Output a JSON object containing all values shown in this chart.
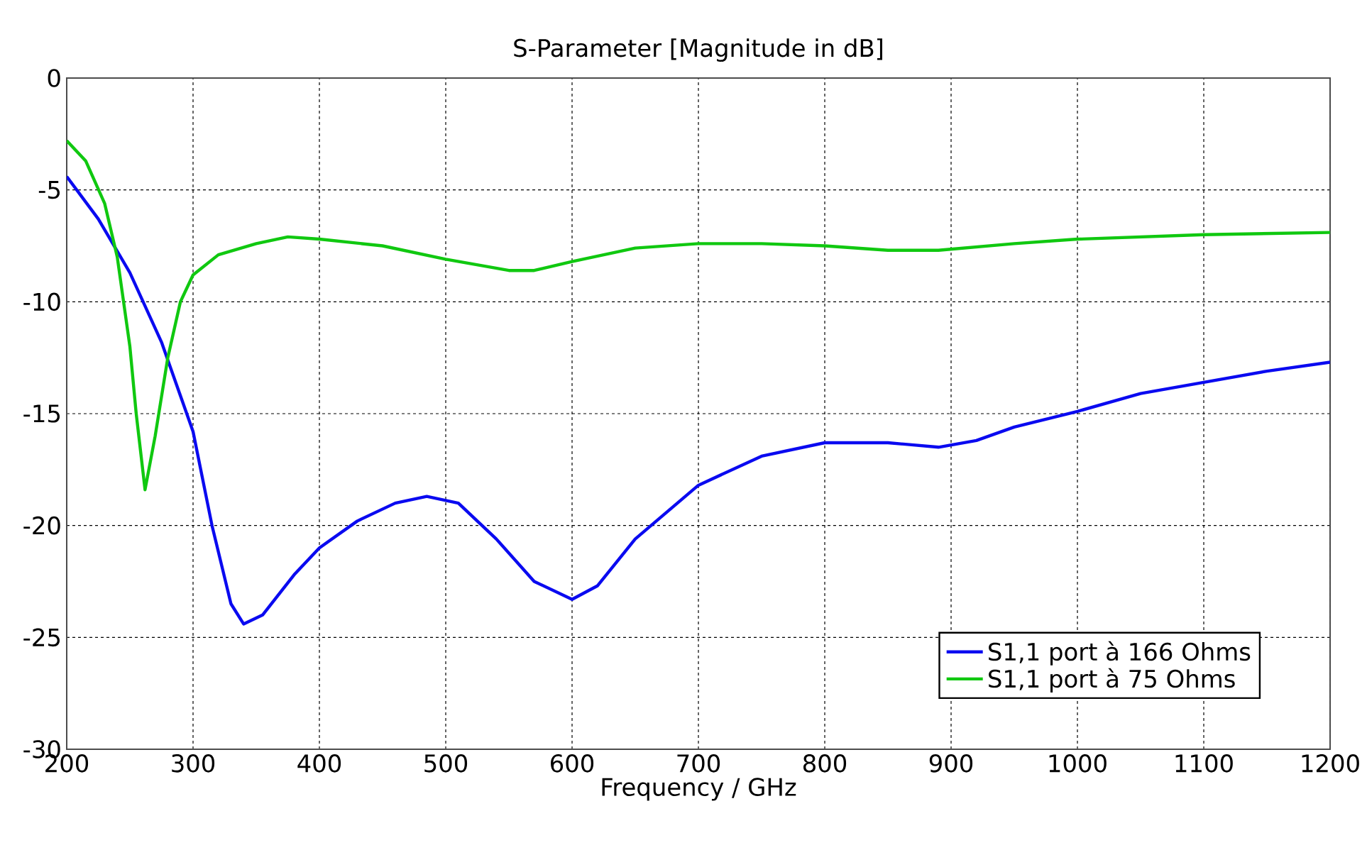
{
  "chart_data": {
    "type": "line",
    "title": "S-Parameter [Magnitude in dB]",
    "xlabel": "Frequency / GHz",
    "xlim": [
      200,
      1200
    ],
    "ylim": [
      -30,
      0
    ],
    "xticks": [
      200,
      300,
      400,
      500,
      600,
      700,
      800,
      900,
      1000,
      1100,
      1200
    ],
    "yticks": [
      -30,
      -25,
      -20,
      -15,
      -10,
      -5,
      0
    ],
    "grid": true,
    "legend": "bottom right",
    "line_style": "solid",
    "marker": "none",
    "series": [
      {
        "name": "S1,1 port à 166 Ohms",
        "color": "#0a0af0",
        "x": [
          200,
          225,
          250,
          275,
          300,
          315,
          330,
          340,
          355,
          380,
          400,
          430,
          460,
          485,
          510,
          540,
          570,
          600,
          620,
          650,
          700,
          750,
          800,
          850,
          890,
          920,
          950,
          1000,
          1050,
          1100,
          1150,
          1200
        ],
        "values": [
          -4.4,
          -6.3,
          -8.7,
          -11.8,
          -15.8,
          -20.0,
          -23.5,
          -24.4,
          -24.0,
          -22.2,
          -21.0,
          -19.8,
          -19.0,
          -18.7,
          -19.0,
          -20.6,
          -22.5,
          -23.3,
          -22.7,
          -20.6,
          -18.2,
          -16.9,
          -16.3,
          -16.3,
          -16.5,
          -16.2,
          -15.6,
          -14.9,
          -14.1,
          -13.6,
          -13.1,
          -12.7
        ]
      },
      {
        "name": "S1,1 port à 75 Ohms",
        "color": "#10c810",
        "x": [
          200,
          215,
          230,
          240,
          250,
          255,
          262,
          270,
          280,
          290,
          300,
          320,
          350,
          375,
          400,
          450,
          500,
          550,
          570,
          600,
          650,
          700,
          750,
          800,
          850,
          890,
          950,
          1000,
          1100,
          1200
        ],
        "values": [
          -2.8,
          -3.7,
          -5.6,
          -8.0,
          -12.0,
          -15.0,
          -18.4,
          -16.0,
          -12.5,
          -10.0,
          -8.8,
          -7.9,
          -7.4,
          -7.1,
          -7.2,
          -7.5,
          -8.1,
          -8.6,
          -8.6,
          -8.2,
          -7.6,
          -7.4,
          -7.4,
          -7.5,
          -7.7,
          -7.7,
          -7.4,
          -7.2,
          -7.0,
          -6.9
        ]
      }
    ]
  }
}
